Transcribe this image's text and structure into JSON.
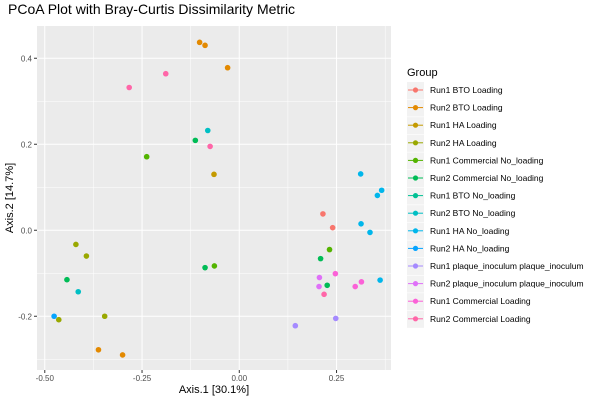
{
  "chart_data": {
    "type": "scatter",
    "title": "PCoA Plot with Bray-Curtis Dissimilarity Metric",
    "xlabel": "Axis.1   [30.1%]",
    "ylabel": "Axis.2   [14.7%]",
    "xlim": [
      -0.52,
      0.39
    ],
    "ylim": [
      -0.325,
      0.475
    ],
    "x_ticks": [
      -0.5,
      -0.25,
      0.0,
      0.25
    ],
    "x_tick_labels": [
      "-0.50",
      "-0.25",
      "0.00",
      "0.25"
    ],
    "y_ticks": [
      -0.2,
      0.0,
      0.2,
      0.4
    ],
    "y_tick_labels": [
      "-0.2",
      "0.0",
      "0.2",
      "0.4"
    ],
    "grid": true,
    "legend_title": "Group",
    "legend_position": "right",
    "series": [
      {
        "name": "Run1 BTO Loading",
        "color": "#F8766D",
        "points": [
          [
            0.215,
            0.038
          ],
          [
            0.24,
            0.006
          ]
        ]
      },
      {
        "name": "Run2 BTO Loading",
        "color": "#E38900",
        "points": [
          [
            -0.102,
            0.437
          ],
          [
            -0.088,
            0.43
          ],
          [
            -0.03,
            0.378
          ],
          [
            -0.362,
            -0.278
          ],
          [
            -0.3,
            -0.29
          ]
        ]
      },
      {
        "name": "Run1 HA Loading",
        "color": "#C49A00",
        "points": [
          [
            -0.065,
            0.13
          ]
        ]
      },
      {
        "name": "Run2 HA Loading",
        "color": "#99A800",
        "points": [
          [
            -0.42,
            -0.033
          ],
          [
            -0.393,
            -0.06
          ],
          [
            -0.464,
            -0.208
          ],
          [
            -0.346,
            -0.2
          ]
        ]
      },
      {
        "name": "Run1 Commercial No_loading",
        "color": "#53B400",
        "points": [
          [
            -0.238,
            0.171
          ],
          [
            -0.064,
            -0.083
          ],
          [
            0.232,
            -0.045
          ]
        ]
      },
      {
        "name": "Run2 Commercial No_loading",
        "color": "#00BC56",
        "points": [
          [
            -0.113,
            0.209
          ],
          [
            -0.088,
            -0.087
          ],
          [
            -0.443,
            -0.115
          ],
          [
            0.209,
            -0.066
          ],
          [
            0.226,
            -0.128
          ]
        ]
      },
      {
        "name": "Run1 BTO No_loading",
        "color": "#00C094",
        "points": []
      },
      {
        "name": "Run2 BTO No_loading",
        "color": "#00BFC4",
        "points": [
          [
            -0.081,
            0.232
          ],
          [
            -0.414,
            -0.143
          ]
        ]
      },
      {
        "name": "Run1 HA No_loading",
        "color": "#00B6EB",
        "points": [
          [
            0.312,
            0.131
          ],
          [
            0.313,
            0.015
          ],
          [
            0.336,
            -0.005
          ],
          [
            0.355,
            0.081
          ],
          [
            0.366,
            0.093
          ],
          [
            0.362,
            -0.116
          ]
        ]
      },
      {
        "name": "Run2 HA No_loading",
        "color": "#06A4FF",
        "points": [
          [
            -0.476,
            -0.2
          ]
        ]
      },
      {
        "name": "Run1 plaque_inoculum plaque_inoculum",
        "color": "#A58AFF",
        "points": [
          [
            0.144,
            -0.222
          ],
          [
            0.248,
            -0.205
          ]
        ]
      },
      {
        "name": "Run2 plaque_inoculum plaque_inoculum",
        "color": "#DF70F8",
        "points": [
          [
            0.206,
            -0.11
          ],
          [
            0.205,
            -0.131
          ]
        ]
      },
      {
        "name": "Run1 Commercial Loading",
        "color": "#FB61D7",
        "points": [
          [
            0.247,
            -0.101
          ],
          [
            0.298,
            -0.131
          ],
          [
            0.314,
            -0.12
          ]
        ]
      },
      {
        "name": "Run2 Commercial Loading",
        "color": "#FF66A8",
        "points": [
          [
            -0.283,
            0.332
          ],
          [
            -0.189,
            0.364
          ],
          [
            -0.075,
            0.195
          ],
          [
            0.218,
            -0.149
          ]
        ]
      }
    ]
  }
}
